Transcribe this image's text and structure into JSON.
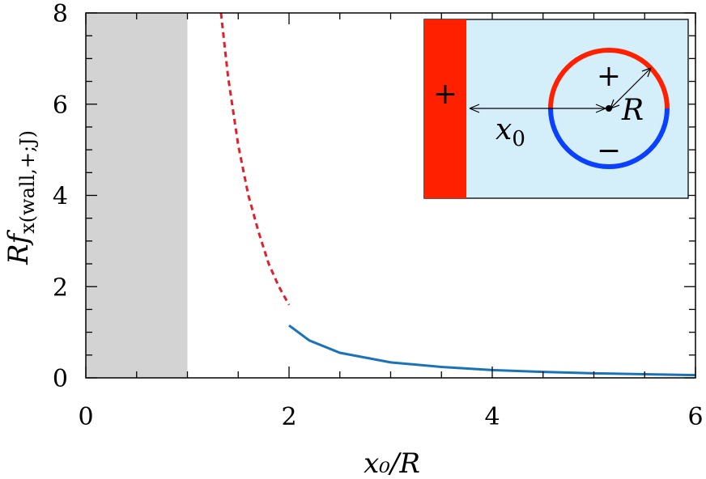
{
  "chart_data": {
    "type": "line",
    "xlabel": "x₀/R",
    "ylabel": "Rf",
    "ylabel_subscript": "x(wall,+;J)",
    "xlim": [
      0,
      6
    ],
    "ylim": [
      0,
      8
    ],
    "xticks": [
      0,
      2,
      4,
      6
    ],
    "yticks": [
      0,
      2,
      4,
      6,
      8
    ],
    "x_tick_labels": [
      "0",
      "2",
      "4",
      "6"
    ],
    "y_tick_labels": [
      "0",
      "2",
      "4",
      "6",
      "8"
    ],
    "grid": false,
    "shaded_region": {
      "x": [
        0,
        1
      ],
      "color": "#d3d3d3"
    },
    "series": [
      {
        "style": "dashed",
        "color": "#e0202a",
        "x": [
          1.33,
          1.4,
          1.5,
          1.6,
          1.7,
          1.8,
          1.9,
          2.0
        ],
        "y": [
          8.0,
          6.6,
          5.1,
          4.0,
          3.2,
          2.5,
          2.0,
          1.6
        ]
      },
      {
        "style": "solid",
        "color": "#1a73b8",
        "x": [
          2.0,
          2.2,
          2.5,
          3.0,
          3.5,
          4.0,
          4.5,
          5.0,
          5.5,
          6.0
        ],
        "y": [
          1.15,
          0.82,
          0.55,
          0.34,
          0.24,
          0.17,
          0.13,
          0.1,
          0.08,
          0.06
        ]
      }
    ]
  },
  "inset": {
    "wall_sign": "+",
    "upper_sign": "+",
    "lower_sign": "−",
    "distance_label": "x",
    "distance_subscript": "0",
    "radius_label": "R",
    "colors": {
      "background": "#d4eefa",
      "wall": "#ff2000",
      "upper_arc": "#ff2000",
      "lower_arc": "#0a40ff"
    }
  }
}
